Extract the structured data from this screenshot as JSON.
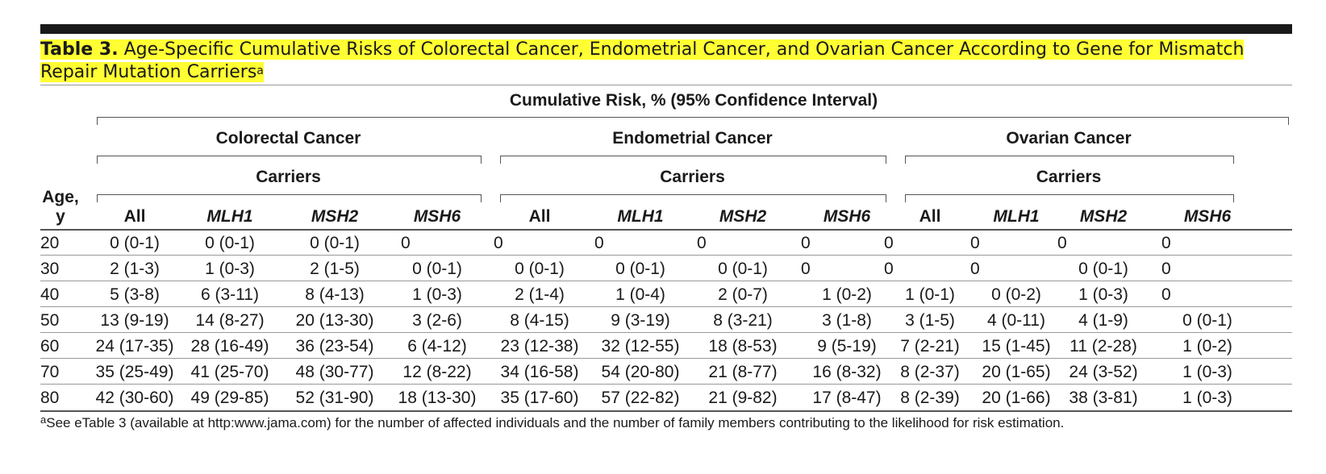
{
  "caption": {
    "label": "Table 3.",
    "title_line1": "Age-Specific Cumulative Risks of Colorectal Cancer, Endometrial Cancer, and Ovarian Cancer According to Gene for Mismatch",
    "title_line2": "Repair Mutation Carriers",
    "footnote_marker": "a"
  },
  "header": {
    "spanner": "Cumulative Risk, % (95% Confidence Interval)",
    "age_label_line1": "Age,",
    "age_label_line2": "y",
    "groups": [
      {
        "name": "Colorectal Cancer",
        "sub": "Carriers"
      },
      {
        "name": "Endometrial Cancer",
        "sub": "Carriers"
      },
      {
        "name": "Ovarian Cancer",
        "sub": "Carriers"
      }
    ],
    "columns": [
      "All",
      "MLH1",
      "MSH2",
      "MSH6",
      "All",
      "MLH1",
      "MSH2",
      "MSH6",
      "All",
      "MLH1",
      "MSH2",
      "MSH6"
    ]
  },
  "rows": [
    {
      "age": "20",
      "cells": [
        "0 (0-1)",
        "0 (0-1)",
        "0 (0-1)",
        "0",
        "0",
        "0",
        "0",
        "0",
        "0",
        "0",
        "0",
        "0"
      ]
    },
    {
      "age": "30",
      "cells": [
        "2 (1-3)",
        "1 (0-3)",
        "2 (1-5)",
        "0 (0-1)",
        "0 (0-1)",
        "0 (0-1)",
        "0 (0-1)",
        "0",
        "0",
        "0",
        "0 (0-1)",
        "0"
      ]
    },
    {
      "age": "40",
      "cells": [
        "5 (3-8)",
        "6 (3-11)",
        "8 (4-13)",
        "1 (0-3)",
        "2 (1-4)",
        "1 (0-4)",
        "2 (0-7)",
        "1 (0-2)",
        "1 (0-1)",
        "0 (0-2)",
        "1 (0-3)",
        "0"
      ]
    },
    {
      "age": "50",
      "cells": [
        "13 (9-19)",
        "14 (8-27)",
        "20 (13-30)",
        "3 (2-6)",
        "8 (4-15)",
        "9 (3-19)",
        "8 (3-21)",
        "3 (1-8)",
        "3 (1-5)",
        "4 (0-11)",
        "4 (1-9)",
        "0 (0-1)"
      ]
    },
    {
      "age": "60",
      "cells": [
        "24 (17-35)",
        "28 (16-49)",
        "36 (23-54)",
        "6 (4-12)",
        "23 (12-38)",
        "32 (12-55)",
        "18 (8-53)",
        "9 (5-19)",
        "7 (2-21)",
        "15 (1-45)",
        "11 (2-28)",
        "1 (0-2)"
      ]
    },
    {
      "age": "70",
      "cells": [
        "35 (25-49)",
        "41 (25-70)",
        "48 (30-77)",
        "12 (8-22)",
        "34 (16-58)",
        "54 (20-80)",
        "21 (8-77)",
        "16 (8-32)",
        "8 (2-37)",
        "20 (1-65)",
        "24 (3-52)",
        "1 (0-3)"
      ]
    },
    {
      "age": "80",
      "cells": [
        "42 (30-60)",
        "49 (29-85)",
        "52 (31-90)",
        "18 (13-30)",
        "35 (17-60)",
        "57 (22-82)",
        "21 (9-82)",
        "17 (8-47)",
        "8 (2-39)",
        "20 (1-66)",
        "38 (3-81)",
        "1 (0-3)"
      ]
    }
  ],
  "footnote": {
    "marker": "a",
    "text": "See eTable 3 (available at http:www.jama.com) for the number of affected individuals and the number of family members contributing to the likelihood for risk estimation."
  },
  "colors": {
    "highlight": "#ffff33",
    "rule": "#1a1a1a"
  }
}
